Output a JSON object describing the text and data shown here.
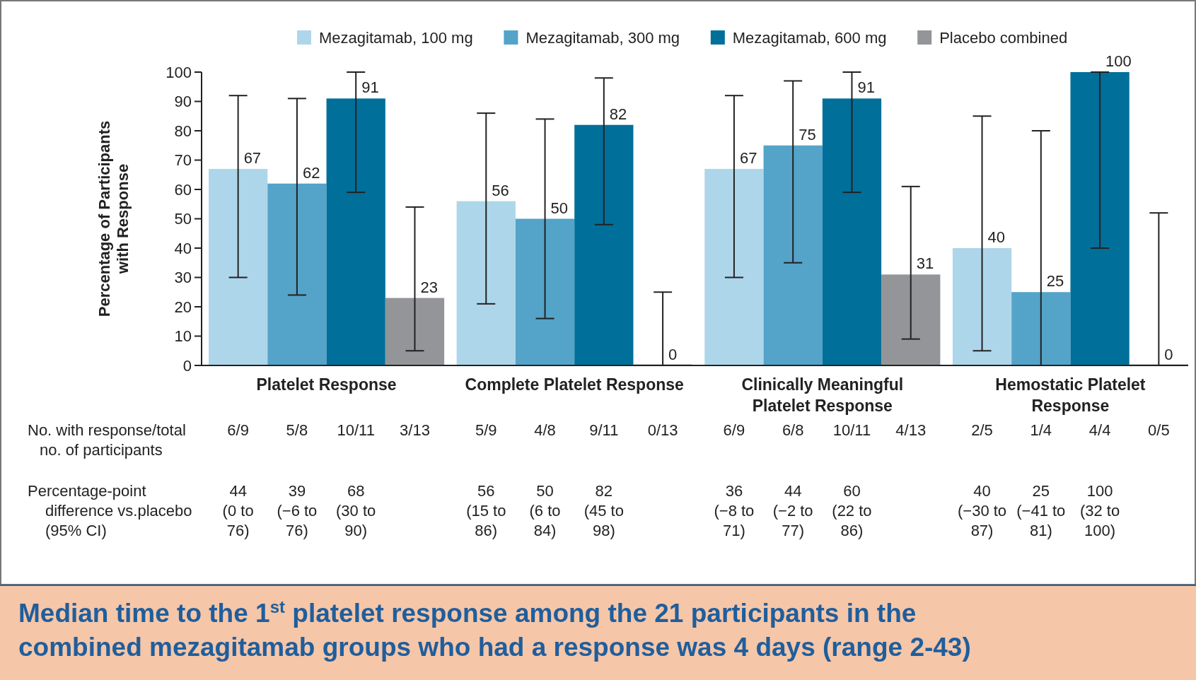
{
  "chart_data": {
    "type": "bar",
    "ylabel": "Percentage of Participants with Response",
    "categories": [
      "Platelet Response",
      "Complete Platelet Response",
      "Clinically Meaningful Platelet Response",
      "Hemostatic Platelet Response"
    ],
    "series": [
      {
        "name": "Mezagitamab, 100 mg",
        "color": "#aed6ea",
        "values": [
          67,
          56,
          67,
          40
        ],
        "errors": [
          [
            30,
            92
          ],
          [
            21,
            86
          ],
          [
            30,
            92
          ],
          [
            5,
            85
          ]
        ]
      },
      {
        "name": "Mezagitamab, 300 mg",
        "color": "#54a3c9",
        "values": [
          62,
          50,
          75,
          25
        ],
        "errors": [
          [
            24,
            91
          ],
          [
            16,
            84
          ],
          [
            35,
            97
          ],
          [
            0,
            80
          ]
        ]
      },
      {
        "name": "Mezagitamab, 600 mg",
        "color": "#006f9a",
        "values": [
          91,
          82,
          91,
          100
        ],
        "errors": [
          [
            59,
            100
          ],
          [
            48,
            98
          ],
          [
            59,
            100
          ],
          [
            40,
            100
          ]
        ]
      },
      {
        "name": "Placebo combined",
        "color": "#939598",
        "values": [
          23,
          0,
          31,
          0
        ],
        "errors": [
          [
            5,
            54
          ],
          [
            0,
            25
          ],
          [
            9,
            61
          ],
          [
            0,
            52
          ]
        ]
      }
    ],
    "data_labels": true,
    "ylim": [
      0,
      100
    ],
    "yticks": [
      0,
      10,
      20,
      30,
      40,
      50,
      60,
      70,
      80,
      90,
      100
    ],
    "grid": false,
    "legend": "top",
    "annotations": [
      "No. with response/total no. of participants",
      "6/9",
      "5/8",
      "10/11",
      "3/13",
      "5/9",
      "4/8",
      "9/11",
      "0/13",
      "6/9",
      "6/8",
      "10/11",
      "4/13",
      "2/5",
      "1/4",
      "4/4",
      "0/5",
      "Percentage-point difference vs.placebo (95% CI)",
      "44 (0 to 76)",
      "39 (−6 to 76)",
      "68 (30 to 90)",
      "56 (15 to 86)",
      "50 (6 to 84)",
      "82 (45 to 98)",
      "36 (−8 to 71)",
      "44 (−2 to 77)",
      "60 (22 to 86)",
      "40 (−30 to 87)",
      "25 (−41 to 81)",
      "100 (32 to 100)",
      "Median time to the 1$^{st}$ platelet response among the 21 participants in the combined mezagitamab groups who had a response was 4 days (range 2-43)"
    ]
  }
}
